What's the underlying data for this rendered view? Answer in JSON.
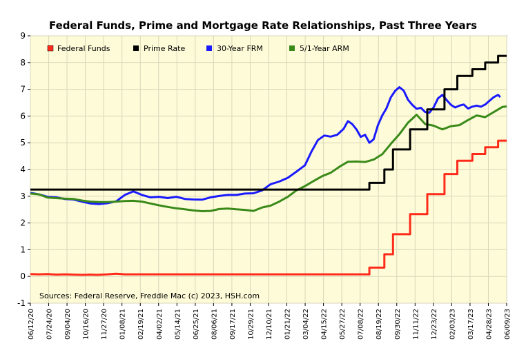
{
  "chart_data": {
    "type": "line",
    "title": "Federal Funds, Prime and Mortgage Rate Relationships, Past Three Years",
    "source_note": "Sources: Federal Reserve, Freddie Mac (c) 2023, HSH.com",
    "ylim": [
      -1,
      9
    ],
    "yticks": [
      -1,
      0,
      1,
      2,
      3,
      4,
      5,
      6,
      7,
      8,
      9
    ],
    "xlim": [
      "06/12/20",
      "06/09/23"
    ],
    "xticks": [
      "06/12/20",
      "07/24/20",
      "09/04/20",
      "10/16/20",
      "11/27/20",
      "01/08/21",
      "02/19/21",
      "04/02/21",
      "05/14/21",
      "06/25/21",
      "08/06/21",
      "09/17/21",
      "10/29/21",
      "12/10/21",
      "01/21/22",
      "03/04/22",
      "04/15/22",
      "05/27/22",
      "07/08/22",
      "08/19/22",
      "09/30/22",
      "11/11/22",
      "12/23/22",
      "02/03/23",
      "03/17/23",
      "04/28/23",
      "06/09/23"
    ],
    "grid": true,
    "legend_position": "top",
    "background": "#fdfbd8",
    "series": [
      {
        "name": "Federal Funds",
        "color": "#ff2a1a",
        "points": [
          [
            0,
            0.09
          ],
          [
            4,
            0.08
          ],
          [
            8,
            0.09
          ],
          [
            12,
            0.07
          ],
          [
            16,
            0.08
          ],
          [
            20,
            0.07
          ],
          [
            24,
            0.06
          ],
          [
            28,
            0.07
          ],
          [
            31,
            0.06
          ],
          [
            36,
            0.08
          ],
          [
            40,
            0.1
          ],
          [
            44,
            0.08
          ],
          [
            48,
            0.08
          ],
          [
            52,
            0.08
          ],
          [
            56,
            0.08
          ],
          [
            60,
            0.08
          ],
          [
            64,
            0.08
          ],
          [
            68,
            0.08
          ],
          [
            72,
            0.08
          ],
          [
            76,
            0.08
          ],
          [
            80,
            0.08
          ],
          [
            84,
            0.08
          ],
          [
            88,
            0.08
          ],
          [
            92,
            0.08
          ],
          [
            96,
            0.08
          ],
          [
            100,
            0.08
          ],
          [
            104,
            0.08
          ],
          [
            108,
            0.08
          ],
          [
            112,
            0.08
          ],
          [
            116,
            0.08
          ],
          [
            120,
            0.08
          ],
          [
            124,
            0.08
          ],
          [
            128,
            0.08
          ],
          [
            132,
            0.08
          ],
          [
            136,
            0.08
          ],
          [
            140,
            0.08
          ],
          [
            144,
            0.08
          ],
          [
            148,
            0.08
          ],
          [
            152,
            0.08
          ],
          [
            156,
            0.08
          ],
          [
            158,
            0.08
          ],
          [
            158,
            0.33
          ],
          [
            161,
            0.33
          ],
          [
            165,
            0.33
          ],
          [
            165,
            0.83
          ],
          [
            169,
            0.83
          ],
          [
            169,
            1.58
          ],
          [
            173,
            1.58
          ],
          [
            177,
            1.58
          ],
          [
            177,
            2.33
          ],
          [
            181,
            2.33
          ],
          [
            185,
            2.33
          ],
          [
            185,
            3.08
          ],
          [
            189,
            3.08
          ],
          [
            193,
            3.08
          ],
          [
            193,
            3.83
          ],
          [
            197,
            3.83
          ],
          [
            199,
            3.83
          ],
          [
            199,
            4.33
          ],
          [
            203,
            4.33
          ],
          [
            206,
            4.33
          ],
          [
            206,
            4.58
          ],
          [
            210,
            4.58
          ],
          [
            212,
            4.58
          ],
          [
            212,
            4.83
          ],
          [
            216,
            4.83
          ],
          [
            218,
            4.83
          ],
          [
            218,
            5.08
          ],
          [
            222,
            5.08
          ]
        ]
      },
      {
        "name": "Prime Rate",
        "color": "#000000",
        "points": [
          [
            0,
            3.25
          ],
          [
            158,
            3.25
          ],
          [
            158,
            3.5
          ],
          [
            165,
            3.5
          ],
          [
            165,
            4.0
          ],
          [
            169,
            4.0
          ],
          [
            169,
            4.75
          ],
          [
            177,
            4.75
          ],
          [
            177,
            5.5
          ],
          [
            185,
            5.5
          ],
          [
            185,
            6.25
          ],
          [
            193,
            6.25
          ],
          [
            193,
            7.0
          ],
          [
            199,
            7.0
          ],
          [
            199,
            7.5
          ],
          [
            206,
            7.5
          ],
          [
            206,
            7.75
          ],
          [
            212,
            7.75
          ],
          [
            212,
            8.0
          ],
          [
            218,
            8.0
          ],
          [
            218,
            8.25
          ],
          [
            222,
            8.25
          ]
        ]
      },
      {
        "name": "30-Year FRM",
        "color": "#1a1aff",
        "points": [
          [
            0,
            3.13
          ],
          [
            4,
            3.07
          ],
          [
            8,
            2.98
          ],
          [
            12,
            2.96
          ],
          [
            16,
            2.9
          ],
          [
            20,
            2.88
          ],
          [
            24,
            2.8
          ],
          [
            28,
            2.73
          ],
          [
            32,
            2.71
          ],
          [
            36,
            2.74
          ],
          [
            40,
            2.81
          ],
          [
            44,
            3.05
          ],
          [
            48,
            3.18
          ],
          [
            52,
            3.05
          ],
          [
            56,
            2.96
          ],
          [
            60,
            2.98
          ],
          [
            64,
            2.93
          ],
          [
            68,
            2.98
          ],
          [
            72,
            2.9
          ],
          [
            76,
            2.88
          ],
          [
            80,
            2.87
          ],
          [
            84,
            2.96
          ],
          [
            88,
            3.01
          ],
          [
            92,
            3.05
          ],
          [
            96,
            3.05
          ],
          [
            100,
            3.1
          ],
          [
            104,
            3.11
          ],
          [
            108,
            3.22
          ],
          [
            112,
            3.45
          ],
          [
            116,
            3.55
          ],
          [
            120,
            3.69
          ],
          [
            124,
            3.92
          ],
          [
            128,
            4.16
          ],
          [
            131,
            4.67
          ],
          [
            134,
            5.1
          ],
          [
            137,
            5.27
          ],
          [
            140,
            5.23
          ],
          [
            143,
            5.3
          ],
          [
            146,
            5.52
          ],
          [
            148,
            5.81
          ],
          [
            150,
            5.7
          ],
          [
            152,
            5.5
          ],
          [
            154,
            5.22
          ],
          [
            156,
            5.3
          ],
          [
            158,
            5.0
          ],
          [
            160,
            5.13
          ],
          [
            162,
            5.66
          ],
          [
            164,
            6.02
          ],
          [
            166,
            6.29
          ],
          [
            168,
            6.7
          ],
          [
            170,
            6.94
          ],
          [
            172,
            7.08
          ],
          [
            174,
            6.95
          ],
          [
            176,
            6.61
          ],
          [
            178,
            6.42
          ],
          [
            180,
            6.27
          ],
          [
            182,
            6.31
          ],
          [
            184,
            6.15
          ],
          [
            186,
            6.13
          ],
          [
            188,
            6.33
          ],
          [
            190,
            6.66
          ],
          [
            192,
            6.79
          ],
          [
            194,
            6.6
          ],
          [
            196,
            6.42
          ],
          [
            198,
            6.32
          ],
          [
            200,
            6.39
          ],
          [
            202,
            6.43
          ],
          [
            204,
            6.28
          ],
          [
            206,
            6.35
          ],
          [
            208,
            6.39
          ],
          [
            210,
            6.35
          ],
          [
            212,
            6.43
          ],
          [
            214,
            6.57
          ],
          [
            216,
            6.71
          ],
          [
            218,
            6.79
          ],
          [
            219,
            6.71
          ]
        ]
      },
      {
        "name": "5/1-Year ARM",
        "color": "#3a8a1a",
        "points": [
          [
            0,
            3.1
          ],
          [
            4,
            3.07
          ],
          [
            8,
            2.95
          ],
          [
            12,
            2.93
          ],
          [
            16,
            2.91
          ],
          [
            20,
            2.9
          ],
          [
            24,
            2.84
          ],
          [
            28,
            2.8
          ],
          [
            32,
            2.78
          ],
          [
            36,
            2.78
          ],
          [
            40,
            2.8
          ],
          [
            44,
            2.82
          ],
          [
            48,
            2.83
          ],
          [
            52,
            2.8
          ],
          [
            56,
            2.73
          ],
          [
            60,
            2.66
          ],
          [
            64,
            2.6
          ],
          [
            68,
            2.55
          ],
          [
            72,
            2.51
          ],
          [
            76,
            2.47
          ],
          [
            80,
            2.44
          ],
          [
            84,
            2.45
          ],
          [
            88,
            2.52
          ],
          [
            92,
            2.54
          ],
          [
            96,
            2.51
          ],
          [
            100,
            2.49
          ],
          [
            104,
            2.45
          ],
          [
            108,
            2.58
          ],
          [
            112,
            2.65
          ],
          [
            116,
            2.8
          ],
          [
            120,
            2.98
          ],
          [
            124,
            3.22
          ],
          [
            128,
            3.38
          ],
          [
            132,
            3.57
          ],
          [
            136,
            3.75
          ],
          [
            140,
            3.88
          ],
          [
            144,
            4.1
          ],
          [
            148,
            4.29
          ],
          [
            152,
            4.3
          ],
          [
            156,
            4.28
          ],
          [
            160,
            4.37
          ],
          [
            164,
            4.57
          ],
          [
            168,
            4.96
          ],
          [
            172,
            5.32
          ],
          [
            176,
            5.75
          ],
          [
            180,
            6.05
          ],
          [
            184,
            5.7
          ],
          [
            188,
            5.64
          ],
          [
            192,
            5.5
          ],
          [
            196,
            5.62
          ],
          [
            200,
            5.66
          ],
          [
            204,
            5.85
          ],
          [
            208,
            6.02
          ],
          [
            212,
            5.96
          ],
          [
            216,
            6.15
          ],
          [
            220,
            6.34
          ],
          [
            222,
            6.36
          ]
        ]
      }
    ]
  },
  "legend": {
    "federal_funds": "Federal Funds",
    "prime_rate": "Prime Rate",
    "frm30": "30-Year FRM",
    "arm51": "5/1-Year ARM"
  }
}
